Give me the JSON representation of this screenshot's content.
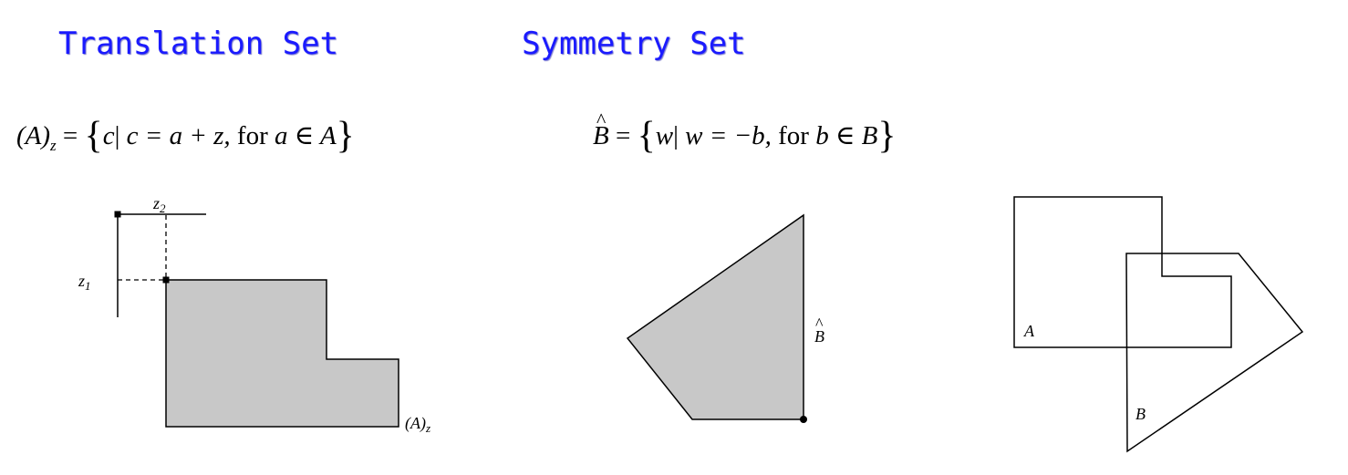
{
  "headings": {
    "translation": "Translation Set",
    "symmetry": "Symmetry Set"
  },
  "formulas": {
    "translation": {
      "lhs": "(A)",
      "sub": "z",
      "eq": " = ",
      "open": "{",
      "elem": "c",
      "bar": "|",
      "cond": " c = a + z, ",
      "for": "for ",
      "cond2": "a ∈ A",
      "close": "}"
    },
    "symmetry": {
      "hat": "^",
      "lhs": "B",
      "eq": " = ",
      "open": "{",
      "elem": "w",
      "bar": "|",
      "cond": " w = −b, ",
      "for": " for ",
      "cond2": "b ∈ B",
      "close": "}"
    }
  },
  "labels": {
    "z2": "z",
    "z2_sub": "2",
    "z1": "z",
    "z1_sub": "1",
    "az": "(A)",
    "az_sub": "z",
    "bhat": "B",
    "bhat_hat": "^",
    "a": "A",
    "b": "B"
  },
  "colors": {
    "heading": "#1a1aff",
    "fill": "#c8c8c8",
    "stroke": "#000000"
  }
}
